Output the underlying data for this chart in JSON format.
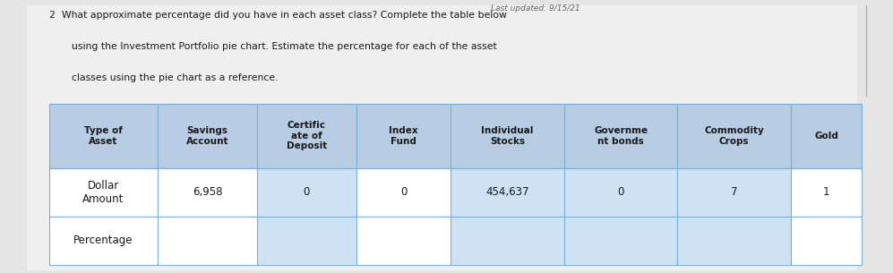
{
  "title_number": "2",
  "title_line1": "2  What approximate percentage did you have in each asset class? Complete the table below",
  "title_line2": "using the Investment Portfolio pie chart. Estimate the percentage for each of the asset",
  "title_line3": "classes using the pie chart as a reference.",
  "header_row": [
    "Type of\nAsset",
    "Savings\nAccount",
    "Certific\nate of\nDeposit",
    "Index\nFund",
    "Individual\nStocks",
    "Governme\nnt bonds",
    "Commodity\nCrops",
    "Gold"
  ],
  "data_rows": [
    [
      "Dollar\nAmount",
      "6,958",
      "0",
      "0",
      "454,637",
      "0",
      "7",
      "1"
    ],
    [
      "Percentage",
      "",
      "",
      "",
      "",
      "",
      "",
      ""
    ]
  ],
  "header_bg": "#b8cce4",
  "data_blue_bg": "#cfe2f3",
  "data_white_bg": "#ffffff",
  "border_color": "#7bafd4",
  "text_color": "#1a1a1a",
  "page_bg": "#d8d8d8",
  "content_bg": "#e8e8e8",
  "watermark": "Last updated: 9/15/21",
  "col_widths_rel": [
    1.15,
    1.05,
    1.05,
    1.0,
    1.2,
    1.2,
    1.2,
    0.75
  ],
  "data_col_blue": [
    false,
    false,
    true,
    false,
    true,
    true,
    true,
    false
  ],
  "figsize": [
    9.97,
    3.05
  ],
  "dpi": 100
}
